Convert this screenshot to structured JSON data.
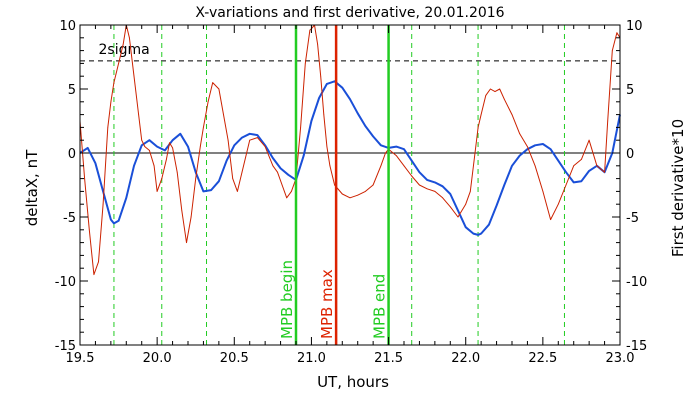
{
  "chart_data": {
    "type": "line",
    "title": "X-variations and first derivative, 20.01.2016",
    "xlabel": "UT, hours",
    "ylabel_left": "deltaX, nT",
    "ylabel_right": "First derivative*10",
    "xlim": [
      19.5,
      23.0
    ],
    "ylim": [
      -15,
      10
    ],
    "grid": false,
    "x_ticks": [
      19.5,
      20.0,
      20.5,
      21.0,
      21.5,
      22.0,
      22.5,
      23.0
    ],
    "x_tick_labels": [
      "19.5",
      "20.0",
      "20.5",
      "21.0",
      "21.5",
      "22.0",
      "22.5",
      "23.0"
    ],
    "y_ticks": [
      10,
      5,
      0,
      -5,
      -10,
      -15
    ],
    "y_tick_labels": [
      "10",
      "5",
      "0",
      "-5",
      "-10",
      "-15"
    ],
    "sigma_label": "2sigma",
    "sigma_level": 7.2,
    "zero_line": 0,
    "colors": {
      "deltaX": "#1a4fd8",
      "derivative": "#cc2200",
      "mpb_marker": "#22cc22",
      "mpb_max": "#dd2200",
      "dashed_marker": "#22cc22",
      "axis": "#000000"
    },
    "dashed_markers_x": [
      19.72,
      20.03,
      20.32,
      21.65,
      22.08,
      22.64
    ],
    "events": [
      {
        "label": "MPB begin",
        "x": 20.9,
        "color": "#22cc22"
      },
      {
        "label": "MPB max",
        "x": 21.16,
        "color": "#dd2200"
      },
      {
        "label": "MPB end",
        "x": 21.5,
        "color": "#22cc22"
      }
    ],
    "series": [
      {
        "name": "deltaX",
        "axis": "left",
        "x": [
          19.5,
          19.55,
          19.6,
          19.65,
          19.7,
          19.72,
          19.75,
          19.8,
          19.85,
          19.9,
          19.95,
          20.0,
          20.05,
          20.1,
          20.15,
          20.2,
          20.25,
          20.3,
          20.35,
          20.4,
          20.45,
          20.5,
          20.55,
          20.6,
          20.65,
          20.7,
          20.75,
          20.8,
          20.85,
          20.9,
          20.95,
          21.0,
          21.05,
          21.1,
          21.15,
          21.2,
          21.25,
          21.3,
          21.35,
          21.4,
          21.45,
          21.5,
          21.55,
          21.6,
          21.65,
          21.7,
          21.75,
          21.8,
          21.85,
          21.9,
          21.95,
          22.0,
          22.05,
          22.08,
          22.1,
          22.15,
          22.2,
          22.25,
          22.3,
          22.35,
          22.4,
          22.45,
          22.5,
          22.55,
          22.6,
          22.65,
          22.7,
          22.75,
          22.8,
          22.85,
          22.9,
          22.95,
          23.0
        ],
        "values": [
          0,
          0.4,
          -0.8,
          -3,
          -5.2,
          -5.5,
          -5.3,
          -3.5,
          -1,
          0.6,
          1,
          0.5,
          0.2,
          1,
          1.5,
          0.5,
          -1.5,
          -3,
          -2.9,
          -2.2,
          -0.6,
          0.6,
          1.2,
          1.5,
          1.4,
          0.6,
          -0.4,
          -1.2,
          -1.7,
          -2.1,
          -0.2,
          2.5,
          4.3,
          5.4,
          5.6,
          5.1,
          4.2,
          3.1,
          2.1,
          1.3,
          0.6,
          0.4,
          0.5,
          0.3,
          -0.6,
          -1.5,
          -2.1,
          -2.3,
          -2.6,
          -3.2,
          -4.5,
          -5.8,
          -6.3,
          -6.4,
          -6.3,
          -5.6,
          -4.1,
          -2.5,
          -1,
          -0.2,
          0.3,
          0.6,
          0.7,
          0.3,
          -0.6,
          -1.5,
          -2.3,
          -2.2,
          -1.4,
          -1,
          -1.5,
          0,
          3
        ]
      },
      {
        "name": "First derivative*10",
        "axis": "right",
        "x": [
          19.5,
          19.53,
          19.56,
          19.59,
          19.62,
          19.65,
          19.68,
          19.7,
          19.72,
          19.75,
          19.78,
          19.8,
          19.82,
          19.85,
          19.88,
          19.9,
          19.92,
          19.95,
          19.98,
          20.0,
          20.03,
          20.06,
          20.08,
          20.1,
          20.13,
          20.16,
          20.19,
          20.22,
          20.25,
          20.28,
          20.3,
          20.33,
          20.36,
          20.4,
          20.43,
          20.46,
          20.49,
          20.52,
          20.55,
          20.6,
          20.65,
          20.7,
          20.75,
          20.78,
          20.81,
          20.84,
          20.87,
          20.9,
          20.93,
          20.96,
          20.99,
          21.0,
          21.02,
          21.04,
          21.06,
          21.08,
          21.1,
          21.12,
          21.15,
          21.2,
          21.25,
          21.3,
          21.35,
          21.4,
          21.45,
          21.48,
          21.5,
          21.55,
          21.6,
          21.65,
          21.7,
          21.75,
          21.8,
          21.85,
          21.9,
          21.95,
          22.0,
          22.03,
          22.06,
          22.08,
          22.1,
          22.13,
          22.16,
          22.19,
          22.22,
          22.25,
          22.3,
          22.35,
          22.4,
          22.45,
          22.5,
          22.55,
          22.6,
          22.65,
          22.7,
          22.75,
          22.8,
          22.85,
          22.9,
          22.92,
          22.95,
          22.98,
          23.0
        ],
        "values": [
          2.5,
          -2,
          -6,
          -9.5,
          -8.5,
          -4,
          2,
          4,
          5.5,
          7,
          8.5,
          10,
          9,
          6,
          3,
          1,
          0.5,
          0.2,
          -1,
          -3,
          -2,
          -0.5,
          0.8,
          0.4,
          -1.5,
          -4.5,
          -7,
          -5,
          -2,
          0.5,
          2,
          4,
          5.5,
          5,
          3,
          1,
          -2,
          -3,
          -1.5,
          1,
          1.2,
          0.5,
          -1,
          -1.5,
          -2.5,
          -3.5,
          -3,
          -2,
          2,
          7,
          9.6,
          9.7,
          10,
          8.5,
          6,
          3,
          0.5,
          -1,
          -2.5,
          -3.2,
          -3.5,
          -3.3,
          -3,
          -2.5,
          -1,
          0,
          0.3,
          -0.2,
          -1,
          -1.8,
          -2.5,
          -2.8,
          -3,
          -3.5,
          -4.2,
          -5,
          -4,
          -3,
          0,
          2,
          3,
          4.5,
          5,
          4.8,
          5,
          4.2,
          3,
          1.5,
          0.5,
          -1,
          -3,
          -5.2,
          -4,
          -2.5,
          -1,
          -0.5,
          1,
          -1,
          -1.5,
          2.5,
          8,
          9.4,
          9
        ]
      }
    ]
  }
}
